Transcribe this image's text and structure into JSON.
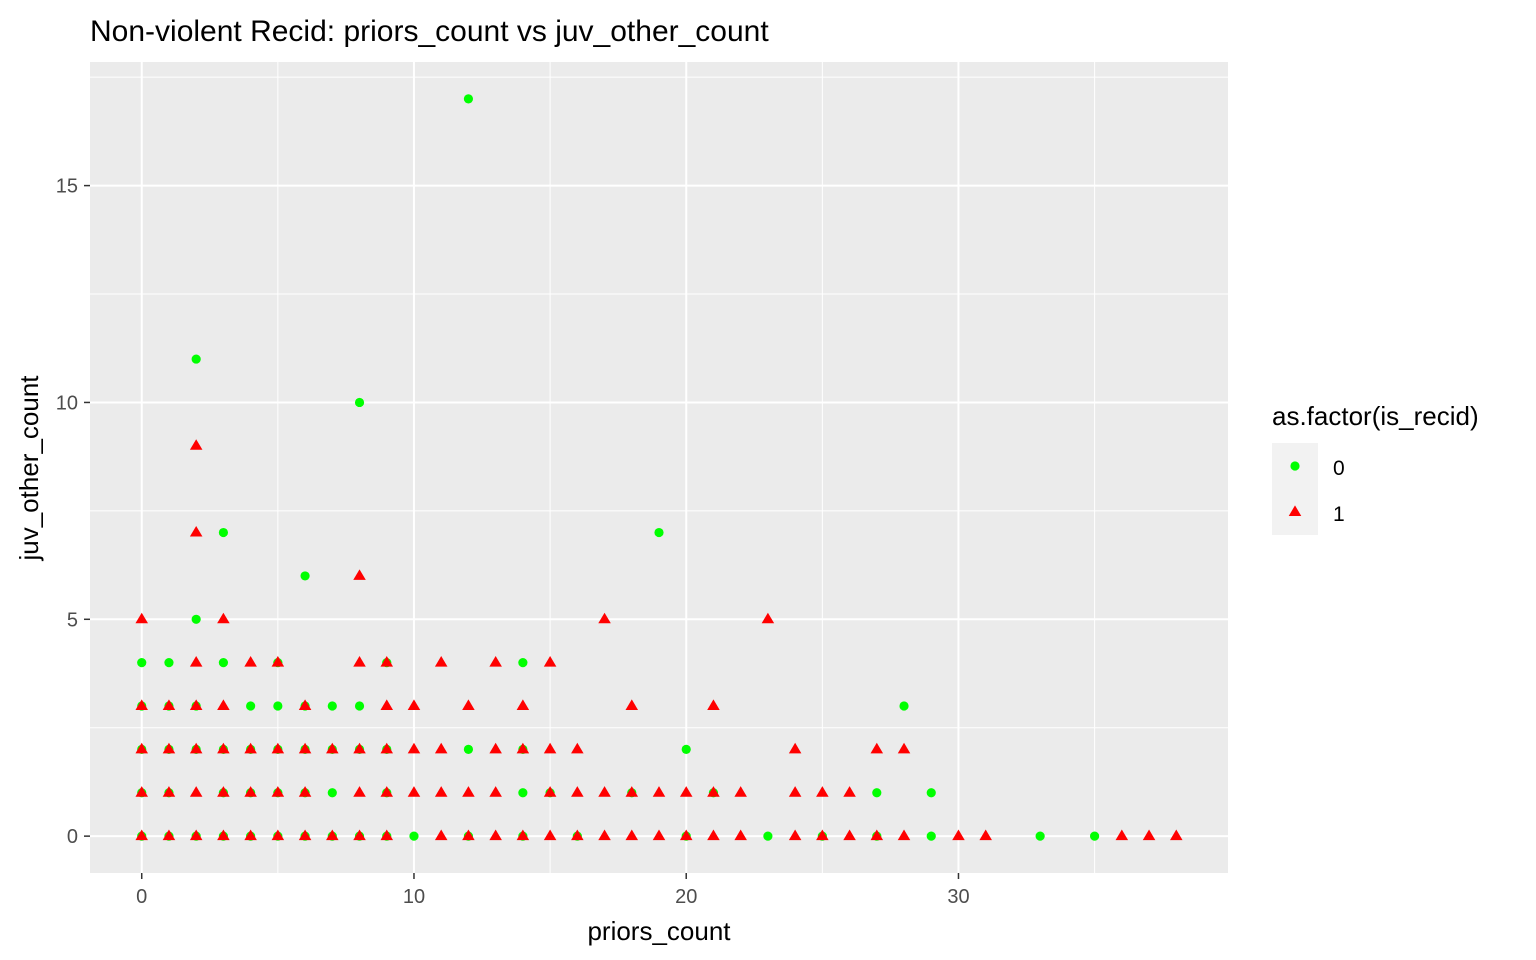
{
  "chart_data": {
    "type": "scatter",
    "title": "Non-violent Recid: priors_count vs juv_other_count",
    "xlabel": "priors_count",
    "ylabel": "juv_other_count",
    "xlim": [
      -1.9,
      39.9
    ],
    "ylim": [
      -0.85,
      17.85
    ],
    "x_ticks": [
      0,
      10,
      20,
      30
    ],
    "y_ticks": [
      0,
      5,
      10,
      15
    ],
    "grid": true,
    "legend": {
      "title": "as.factor(is_recid)",
      "position": "right",
      "entries": [
        {
          "label": "0",
          "shape": "circle",
          "color": "#00ff00"
        },
        {
          "label": "1",
          "shape": "triangle",
          "color": "#ff0000"
        }
      ]
    },
    "series": [
      {
        "name": "0",
        "shape": "circle",
        "color": "#00ff00",
        "points": [
          [
            12,
            17
          ],
          [
            2,
            11
          ],
          [
            8,
            10
          ],
          [
            3,
            7
          ],
          [
            19,
            7
          ],
          [
            6,
            6
          ],
          [
            2,
            5
          ],
          [
            0,
            4
          ],
          [
            1,
            4
          ],
          [
            3,
            4
          ],
          [
            5,
            4
          ],
          [
            9,
            4
          ],
          [
            14,
            4
          ],
          [
            0,
            3
          ],
          [
            1,
            3
          ],
          [
            2,
            3
          ],
          [
            4,
            3
          ],
          [
            5,
            3
          ],
          [
            6,
            3
          ],
          [
            7,
            3
          ],
          [
            8,
            3
          ],
          [
            28,
            3
          ],
          [
            0,
            2
          ],
          [
            1,
            2
          ],
          [
            2,
            2
          ],
          [
            3,
            2
          ],
          [
            4,
            2
          ],
          [
            5,
            2
          ],
          [
            6,
            2
          ],
          [
            7,
            2
          ],
          [
            8,
            2
          ],
          [
            9,
            2
          ],
          [
            12,
            2
          ],
          [
            14,
            2
          ],
          [
            20,
            2
          ],
          [
            0,
            1
          ],
          [
            1,
            1
          ],
          [
            3,
            1
          ],
          [
            4,
            1
          ],
          [
            5,
            1
          ],
          [
            6,
            1
          ],
          [
            7,
            1
          ],
          [
            9,
            1
          ],
          [
            14,
            1
          ],
          [
            15,
            1
          ],
          [
            18,
            1
          ],
          [
            21,
            1
          ],
          [
            27,
            1
          ],
          [
            29,
            1
          ],
          [
            0,
            0
          ],
          [
            1,
            0
          ],
          [
            2,
            0
          ],
          [
            3,
            0
          ],
          [
            4,
            0
          ],
          [
            5,
            0
          ],
          [
            6,
            0
          ],
          [
            7,
            0
          ],
          [
            8,
            0
          ],
          [
            9,
            0
          ],
          [
            10,
            0
          ],
          [
            12,
            0
          ],
          [
            14,
            0
          ],
          [
            16,
            0
          ],
          [
            20,
            0
          ],
          [
            23,
            0
          ],
          [
            25,
            0
          ],
          [
            27,
            0
          ],
          [
            29,
            0
          ],
          [
            33,
            0
          ],
          [
            35,
            0
          ]
        ]
      },
      {
        "name": "1",
        "shape": "triangle",
        "color": "#ff0000",
        "points": [
          [
            2,
            9
          ],
          [
            2,
            7
          ],
          [
            8,
            6
          ],
          [
            0,
            5
          ],
          [
            3,
            5
          ],
          [
            17,
            5
          ],
          [
            23,
            5
          ],
          [
            2,
            4
          ],
          [
            4,
            4
          ],
          [
            5,
            4
          ],
          [
            8,
            4
          ],
          [
            9,
            4
          ],
          [
            11,
            4
          ],
          [
            13,
            4
          ],
          [
            15,
            4
          ],
          [
            0,
            3
          ],
          [
            1,
            3
          ],
          [
            2,
            3
          ],
          [
            3,
            3
          ],
          [
            6,
            3
          ],
          [
            9,
            3
          ],
          [
            10,
            3
          ],
          [
            12,
            3
          ],
          [
            14,
            3
          ],
          [
            18,
            3
          ],
          [
            21,
            3
          ],
          [
            0,
            2
          ],
          [
            1,
            2
          ],
          [
            2,
            2
          ],
          [
            3,
            2
          ],
          [
            4,
            2
          ],
          [
            5,
            2
          ],
          [
            6,
            2
          ],
          [
            7,
            2
          ],
          [
            8,
            2
          ],
          [
            9,
            2
          ],
          [
            10,
            2
          ],
          [
            11,
            2
          ],
          [
            13,
            2
          ],
          [
            14,
            2
          ],
          [
            15,
            2
          ],
          [
            16,
            2
          ],
          [
            24,
            2
          ],
          [
            27,
            2
          ],
          [
            28,
            2
          ],
          [
            0,
            1
          ],
          [
            1,
            1
          ],
          [
            2,
            1
          ],
          [
            3,
            1
          ],
          [
            4,
            1
          ],
          [
            5,
            1
          ],
          [
            6,
            1
          ],
          [
            8,
            1
          ],
          [
            9,
            1
          ],
          [
            10,
            1
          ],
          [
            11,
            1
          ],
          [
            12,
            1
          ],
          [
            13,
            1
          ],
          [
            15,
            1
          ],
          [
            16,
            1
          ],
          [
            17,
            1
          ],
          [
            18,
            1
          ],
          [
            19,
            1
          ],
          [
            20,
            1
          ],
          [
            21,
            1
          ],
          [
            22,
            1
          ],
          [
            24,
            1
          ],
          [
            25,
            1
          ],
          [
            26,
            1
          ],
          [
            0,
            0
          ],
          [
            1,
            0
          ],
          [
            2,
            0
          ],
          [
            3,
            0
          ],
          [
            4,
            0
          ],
          [
            5,
            0
          ],
          [
            6,
            0
          ],
          [
            7,
            0
          ],
          [
            8,
            0
          ],
          [
            9,
            0
          ],
          [
            11,
            0
          ],
          [
            12,
            0
          ],
          [
            13,
            0
          ],
          [
            14,
            0
          ],
          [
            15,
            0
          ],
          [
            16,
            0
          ],
          [
            17,
            0
          ],
          [
            18,
            0
          ],
          [
            19,
            0
          ],
          [
            20,
            0
          ],
          [
            21,
            0
          ],
          [
            22,
            0
          ],
          [
            24,
            0
          ],
          [
            25,
            0
          ],
          [
            26,
            0
          ],
          [
            27,
            0
          ],
          [
            28,
            0
          ],
          [
            30,
            0
          ],
          [
            31,
            0
          ],
          [
            36,
            0
          ],
          [
            37,
            0
          ],
          [
            38,
            0
          ]
        ]
      }
    ]
  }
}
